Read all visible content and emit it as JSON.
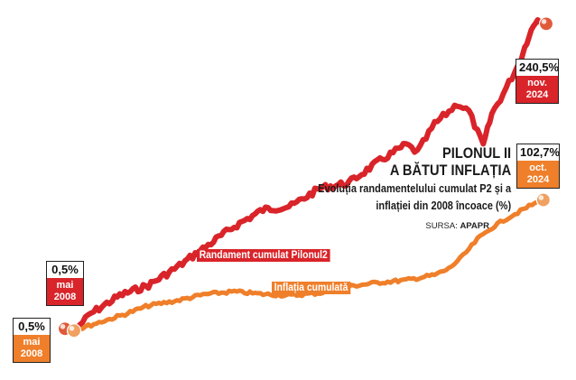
{
  "title_line1": "PILONUL II",
  "title_line2": "A BĂTUT INFLAȚIA",
  "subtitle_line1": "Evoluția randamentelului cumulat P2 și a",
  "subtitle_line2": "inflației din 2008 încoace (%)",
  "source_prefix": "SURSA:",
  "source_name": "APAPR",
  "colors": {
    "red": "#d9242a",
    "orange": "#ef7f2a"
  },
  "callouts": {
    "red_start": {
      "value": "0,5%",
      "date1": "mai",
      "date2": "2008"
    },
    "orange_start": {
      "value": "0,5%",
      "date1": "mai",
      "date2": "2008"
    },
    "red_end": {
      "value": "240,5%",
      "date1": "nov.",
      "date2": "2024"
    },
    "orange_end": {
      "value": "102,7%",
      "date1": "oct.",
      "date2": "2024"
    }
  },
  "chart_data": {
    "type": "line",
    "x_start": "2008-05",
    "x_end": "2024-11",
    "series": [
      {
        "name": "Randament cumulat Pilonul2",
        "color": "#d9242a",
        "x": [
          2008.4,
          2009.0,
          2010.0,
          2011.0,
          2012.0,
          2013.0,
          2014.0,
          2015.0,
          2016.0,
          2017.0,
          2018.0,
          2019.0,
          2020.0,
          2020.4,
          2021.0,
          2021.8,
          2022.2,
          2022.7,
          2023.0,
          2023.5,
          2024.0,
          2024.3,
          2024.6,
          2024.9
        ],
        "y": [
          0.5,
          14,
          28,
          36,
          50,
          66,
          82,
          95,
          98,
          112,
          116,
          132,
          146,
          140,
          162,
          178,
          172,
          145,
          170,
          190,
          212,
          232,
          245,
          240.5
        ]
      },
      {
        "name": "Inflația cumulată",
        "color": "#ef7f2a",
        "x": [
          2008.4,
          2009.0,
          2010.0,
          2011.0,
          2012.0,
          2013.0,
          2014.0,
          2015.0,
          2016.0,
          2017.0,
          2018.0,
          2019.0,
          2020.0,
          2021.0,
          2021.5,
          2022.0,
          2022.5,
          2023.0,
          2023.5,
          2024.0,
          2024.4,
          2024.8
        ],
        "y": [
          0.5,
          5,
          12,
          20,
          24,
          29,
          31,
          29,
          28,
          30,
          35,
          38,
          40,
          44,
          49,
          59,
          72,
          81,
          88,
          94,
          99,
          102.7
        ]
      }
    ]
  }
}
